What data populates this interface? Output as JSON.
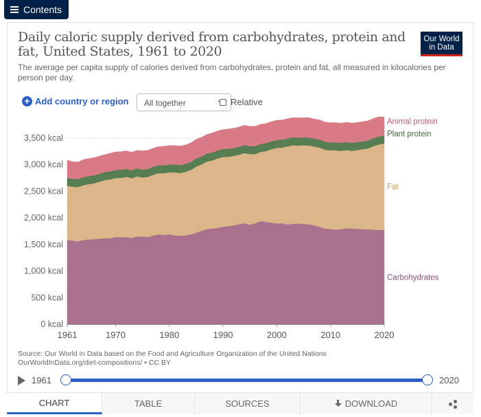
{
  "contents_label": "Contents",
  "title": "Daily caloric supply derived from carbohydrates, protein and fat, United States, 1961 to 2020",
  "subtitle": "The average per capita supply of calories derived from carbohydrates, protein and fat, all measured in kilocalories per person per day.",
  "logo": {
    "line1": "Our World",
    "line2": "in Data"
  },
  "controls": {
    "add_country": "Add country or region",
    "select_value": "All together",
    "relative_label": "Relative"
  },
  "source_text": "Source: Our World in Data based on the Food and Agriculture Organization of the United Nations",
  "source_url": "OurWorldInData.org/diet-compositions/ • CC BY",
  "timeline": {
    "start": "1961",
    "end": "2020"
  },
  "tabs": [
    {
      "label": "CHART"
    },
    {
      "label": "TABLE"
    },
    {
      "label": "SOURCES"
    },
    {
      "label": "DOWNLOAD"
    },
    {
      "label": ""
    }
  ],
  "colors": {
    "accent": "#2a5ec9",
    "brand": "#002147",
    "carbohydrates": "#a8728e",
    "fat": "#dbb689",
    "plant_protein": "#577d52",
    "animal_protein": "#d97b87"
  },
  "chart_data": {
    "type": "area",
    "stacked": true,
    "x": [
      1961,
      1962,
      1963,
      1964,
      1965,
      1966,
      1967,
      1968,
      1969,
      1970,
      1971,
      1972,
      1973,
      1974,
      1975,
      1976,
      1977,
      1978,
      1979,
      1980,
      1981,
      1982,
      1983,
      1984,
      1985,
      1986,
      1987,
      1988,
      1989,
      1990,
      1991,
      1992,
      1993,
      1994,
      1995,
      1996,
      1997,
      1998,
      1999,
      2000,
      2001,
      2002,
      2003,
      2004,
      2005,
      2006,
      2007,
      2008,
      2009,
      2010,
      2011,
      2012,
      2013,
      2014,
      2015,
      2016,
      2017,
      2018,
      2019,
      2020
    ],
    "series": [
      {
        "name": "Carbohydrates",
        "color": "#a8728e",
        "values": [
          1585,
          1575,
          1560,
          1585,
          1595,
          1600,
          1610,
          1620,
          1615,
          1640,
          1635,
          1640,
          1625,
          1650,
          1650,
          1640,
          1670,
          1690,
          1680,
          1690,
          1670,
          1665,
          1670,
          1690,
          1720,
          1760,
          1790,
          1800,
          1810,
          1835,
          1845,
          1860,
          1880,
          1900,
          1870,
          1900,
          1940,
          1925,
          1910,
          1895,
          1900,
          1875,
          1890,
          1895,
          1885,
          1880,
          1860,
          1830,
          1800,
          1790,
          1780,
          1790,
          1805,
          1800,
          1795,
          1790,
          1785,
          1780,
          1770,
          1775
        ]
      },
      {
        "name": "Fat",
        "color": "#dbb689",
        "values": [
          1020,
          1010,
          1020,
          1030,
          1040,
          1050,
          1070,
          1090,
          1110,
          1110,
          1120,
          1130,
          1120,
          1130,
          1110,
          1130,
          1140,
          1150,
          1160,
          1165,
          1185,
          1180,
          1195,
          1210,
          1245,
          1245,
          1270,
          1280,
          1310,
          1310,
          1305,
          1305,
          1310,
          1320,
          1330,
          1300,
          1300,
          1330,
          1380,
          1420,
          1420,
          1470,
          1475,
          1465,
          1480,
          1480,
          1480,
          1490,
          1480,
          1480,
          1490,
          1470,
          1470,
          1460,
          1480,
          1500,
          1520,
          1570,
          1610,
          1625
        ]
      },
      {
        "name": "Plant protein",
        "color": "#577d52",
        "values": [
          150,
          150,
          150,
          150,
          150,
          150,
          150,
          150,
          150,
          150,
          150,
          150,
          150,
          150,
          150,
          150,
          150,
          150,
          150,
          150,
          150,
          150,
          150,
          150,
          150,
          150,
          150,
          150,
          150,
          150,
          150,
          150,
          150,
          150,
          150,
          150,
          150,
          150,
          150,
          150,
          150,
          150,
          150,
          150,
          150,
          150,
          150,
          150,
          150,
          150,
          150,
          150,
          150,
          150,
          150,
          150,
          150,
          150,
          150,
          150
        ]
      },
      {
        "name": "Animal protein",
        "color": "#d97b87",
        "values": [
          330,
          320,
          320,
          330,
          330,
          330,
          330,
          330,
          340,
          340,
          340,
          340,
          340,
          340,
          350,
          350,
          350,
          350,
          355,
          355,
          355,
          355,
          355,
          360,
          360,
          360,
          360,
          365,
          365,
          365,
          370,
          370,
          370,
          370,
          370,
          370,
          370,
          370,
          370,
          370,
          370,
          370,
          370,
          370,
          370,
          370,
          370,
          370,
          370,
          370,
          370,
          370,
          370,
          370,
          370,
          370,
          370,
          370,
          370,
          370
        ]
      }
    ],
    "y_ticks": [
      "0 kcal",
      "500 kcal",
      "1,000 kcal",
      "1,500 kcal",
      "2,000 kcal",
      "2,500 kcal",
      "3,000 kcal",
      "3,500 kcal"
    ],
    "x_ticks": [
      "1961",
      "1970",
      "1980",
      "1990",
      "2000",
      "2010",
      "2020"
    ],
    "ylim": [
      0,
      3900
    ],
    "legend_labels": [
      "Animal protein",
      "Plant protein",
      "Fat",
      "Carbohydrates"
    ],
    "grid": true,
    "legend_position": "right (inline labels)"
  }
}
